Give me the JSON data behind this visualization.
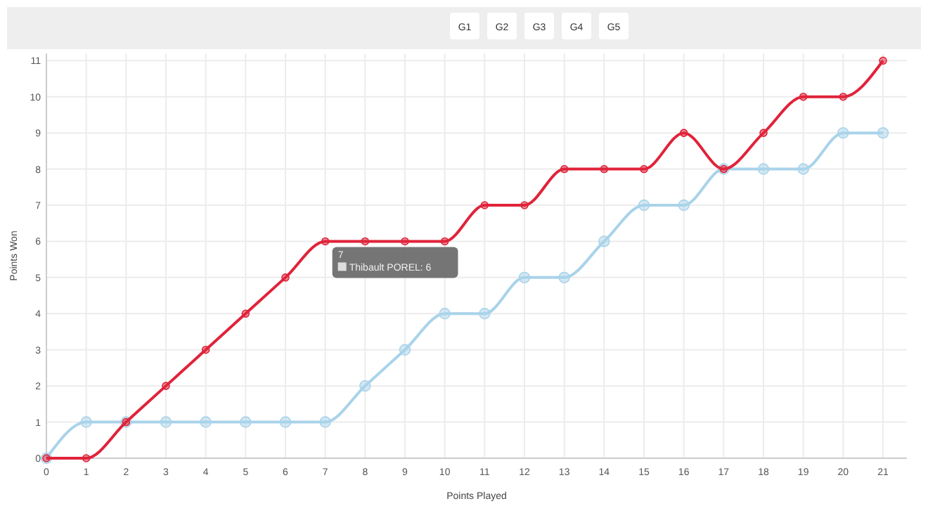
{
  "chart_data": {
    "type": "line",
    "xlabel": "Points Played",
    "ylabel": "Points Won",
    "x": [
      0,
      1,
      2,
      3,
      4,
      5,
      6,
      7,
      8,
      9,
      10,
      11,
      12,
      13,
      14,
      15,
      16,
      17,
      18,
      19,
      20,
      21
    ],
    "series": [
      {
        "color": "#e0233a",
        "values": [
          0,
          0,
          1,
          2,
          3,
          4,
          5,
          6,
          6,
          6,
          6,
          7,
          7,
          8,
          8,
          8,
          9,
          8,
          9,
          10,
          10,
          11
        ]
      },
      {
        "color": "#a9d3ea",
        "values": [
          0,
          1,
          1,
          1,
          1,
          1,
          1,
          1,
          2,
          3,
          4,
          4,
          5,
          5,
          6,
          7,
          7,
          8,
          8,
          8,
          9,
          9
        ]
      }
    ],
    "xlim": [
      0,
      21.6
    ],
    "xticks": [
      0,
      1,
      2,
      3,
      4,
      5,
      6,
      7,
      8,
      9,
      10,
      11,
      12,
      13,
      14,
      15,
      16,
      17,
      18,
      19,
      20,
      21
    ],
    "ylim": [
      0,
      11.2
    ],
    "yticks": [
      0,
      1,
      2,
      3,
      4,
      5,
      6,
      7,
      8,
      9,
      10,
      11
    ],
    "grid": true,
    "marker": "circle",
    "annotations": [
      "G1",
      "G2",
      "G3",
      "G4",
      "G5",
      {
        "text": "7\nThibault POREL: 6",
        "x": 7,
        "y": 6
      }
    ]
  }
}
